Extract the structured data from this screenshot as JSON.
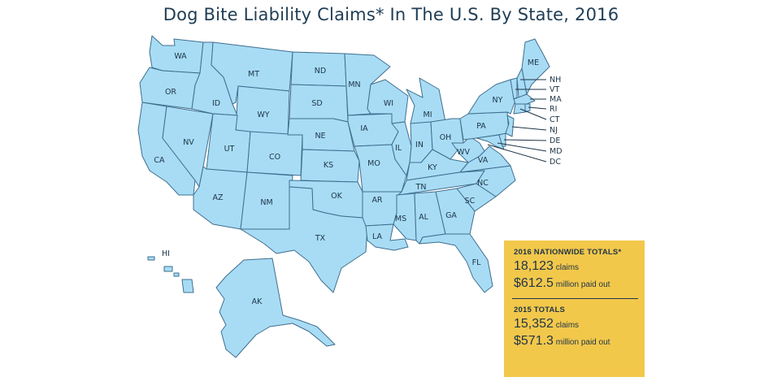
{
  "title": "Dog Bite Liability Claims* In The U.S. By State, 2016",
  "colors": {
    "state_fill": "#a8dcf5",
    "state_stroke": "#3f6f8f",
    "panel": "#f2c84b",
    "text": "#1f3d55"
  },
  "states": {
    "WA": "WA",
    "OR": "OR",
    "CA": "CA",
    "NV": "NV",
    "ID": "ID",
    "MT": "MT",
    "WY": "WY",
    "UT": "UT",
    "AZ": "AZ",
    "CO": "CO",
    "NM": "NM",
    "ND": "ND",
    "SD": "SD",
    "NE": "NE",
    "KS": "KS",
    "OK": "OK",
    "TX": "TX",
    "MN": "MN",
    "IA": "IA",
    "MO": "MO",
    "AR": "AR",
    "LA": "LA",
    "WI": "WI",
    "IL": "IL",
    "MI": "MI",
    "IN": "IN",
    "OH": "OH",
    "KY": "KY",
    "TN": "TN",
    "MS": "MS",
    "AL": "AL",
    "GA": "GA",
    "FL": "FL",
    "SC": "SC",
    "NC": "NC",
    "VA": "VA",
    "WV": "WV",
    "PA": "PA",
    "NY": "NY",
    "ME": "ME",
    "AK": "AK",
    "HI": "HI",
    "NH": "NH",
    "VT": "VT",
    "MA": "MA",
    "RI": "RI",
    "CT": "CT",
    "NJ": "NJ",
    "DE": "DE",
    "MD": "MD",
    "DC": "DC"
  },
  "totals": {
    "y2016": {
      "header": "2016 NATIONWIDE TOTALS*",
      "claims_number": "18,123",
      "claims_label": "claims",
      "paid_number": "$612.5",
      "paid_label": "million paid out"
    },
    "y2015": {
      "header": "2015 TOTALS",
      "claims_number": "15,352",
      "claims_label": "claims",
      "paid_number": "$571.3",
      "paid_label": "million paid out"
    }
  }
}
